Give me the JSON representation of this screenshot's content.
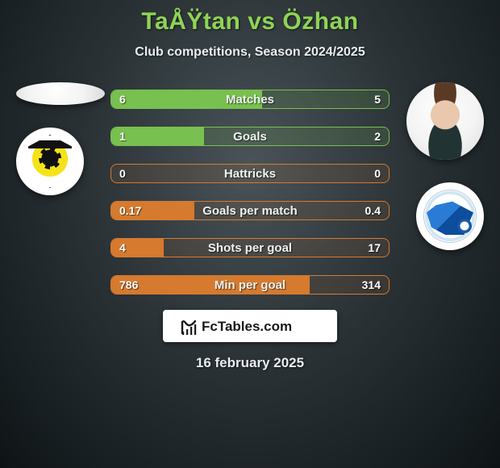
{
  "title": "TaÅŸtan vs Özhan",
  "subtitle": "Club competitions, Season 2024/2025",
  "date_footer": "16 february 2025",
  "colors": {
    "title": "#8fd455",
    "text": "#e9edef",
    "brand_box_bg": "#ffffff",
    "brand_text": "#1a1a1a"
  },
  "brand": {
    "label": "FcTables.com"
  },
  "rows": [
    {
      "label": "Matches",
      "left": "6",
      "right": "5",
      "left_pct": 0.545,
      "outline": "#78c04f",
      "fill": "#78c04f",
      "bg": "rgba(120,192,79,0.15)"
    },
    {
      "label": "Goals",
      "left": "1",
      "right": "2",
      "left_pct": 0.333,
      "outline": "#78c04f",
      "fill": "#78c04f",
      "bg": "rgba(120,192,79,0.15)"
    },
    {
      "label": "Hattricks",
      "left": "0",
      "right": "0",
      "left_pct": 0.0,
      "outline": "#d57a2f",
      "fill": "#d57a2f",
      "bg": "rgba(213,122,47,0.10)"
    },
    {
      "label": "Goals per match",
      "left": "0.17",
      "right": "0.4",
      "left_pct": 0.298,
      "outline": "#d57a2f",
      "fill": "#d57a2f",
      "bg": "rgba(213,122,47,0.10)"
    },
    {
      "label": "Shots per goal",
      "left": "4",
      "right": "17",
      "left_pct": 0.19,
      "outline": "#d57a2f",
      "fill": "#d57a2f",
      "bg": "rgba(213,122,47,0.10)"
    },
    {
      "label": "Min per goal",
      "left": "786",
      "right": "314",
      "left_pct": 0.715,
      "outline": "#d57a2f",
      "fill": "#d57a2f",
      "bg": "rgba(213,122,47,0.10)"
    }
  ]
}
